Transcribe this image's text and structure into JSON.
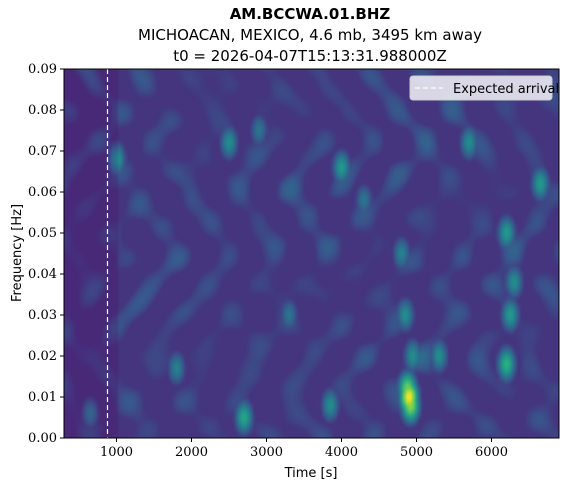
{
  "chart_data": {
    "type": "heatmap",
    "title": "AM.BCCWA.01.BHZ",
    "subtitle": "MICHOACAN, MEXICO, 4.6 mb, 3495 km away",
    "subtitle2": "t0 = 2026-04-07T15:13:31.988000Z",
    "xlabel": "Time [s]",
    "ylabel": "Frequency [Hz]",
    "xlim": [
      300,
      6900
    ],
    "ylim": [
      0,
      0.09
    ],
    "x_ticks": [
      1000,
      2000,
      3000,
      4000,
      5000,
      6000
    ],
    "x_tick_labels": [
      "1000",
      "2000",
      "3000",
      "4000",
      "5000",
      "6000"
    ],
    "y_ticks": [
      0.0,
      0.01,
      0.02,
      0.03,
      0.04,
      0.05,
      0.06,
      0.07,
      0.08,
      0.09
    ],
    "y_tick_labels": [
      "0.00",
      "0.01",
      "0.02",
      "0.03",
      "0.04",
      "0.05",
      "0.06",
      "0.07",
      "0.08",
      "0.09"
    ],
    "colormap": "viridis",
    "expected_arrival": 880,
    "legend": {
      "label": "Expected arrival",
      "position": "top-right"
    },
    "hotspots": [
      {
        "t": 4900,
        "f": 0.01,
        "v": 1.0
      },
      {
        "t": 4920,
        "f": 0.008,
        "v": 0.85
      },
      {
        "t": 4880,
        "f": 0.012,
        "v": 0.8
      },
      {
        "t": 6200,
        "f": 0.018,
        "v": 0.65
      },
      {
        "t": 6250,
        "f": 0.03,
        "v": 0.55
      },
      {
        "t": 6300,
        "f": 0.038,
        "v": 0.5
      },
      {
        "t": 6200,
        "f": 0.05,
        "v": 0.55
      },
      {
        "t": 4850,
        "f": 0.03,
        "v": 0.5
      },
      {
        "t": 4800,
        "f": 0.045,
        "v": 0.45
      },
      {
        "t": 4950,
        "f": 0.02,
        "v": 0.5
      },
      {
        "t": 4000,
        "f": 0.066,
        "v": 0.55
      },
      {
        "t": 1000,
        "f": 0.068,
        "v": 0.55
      },
      {
        "t": 2700,
        "f": 0.005,
        "v": 0.6
      },
      {
        "t": 6650,
        "f": 0.062,
        "v": 0.55
      },
      {
        "t": 5300,
        "f": 0.02,
        "v": 0.5
      },
      {
        "t": 3850,
        "f": 0.008,
        "v": 0.5
      },
      {
        "t": 2500,
        "f": 0.072,
        "v": 0.5
      },
      {
        "t": 1800,
        "f": 0.017,
        "v": 0.45
      },
      {
        "t": 650,
        "f": 0.006,
        "v": 0.45
      },
      {
        "t": 5700,
        "f": 0.072,
        "v": 0.5
      },
      {
        "t": 3300,
        "f": 0.03,
        "v": 0.4
      },
      {
        "t": 4300,
        "f": 0.058,
        "v": 0.4
      },
      {
        "t": 2900,
        "f": 0.075,
        "v": 0.4
      }
    ]
  }
}
